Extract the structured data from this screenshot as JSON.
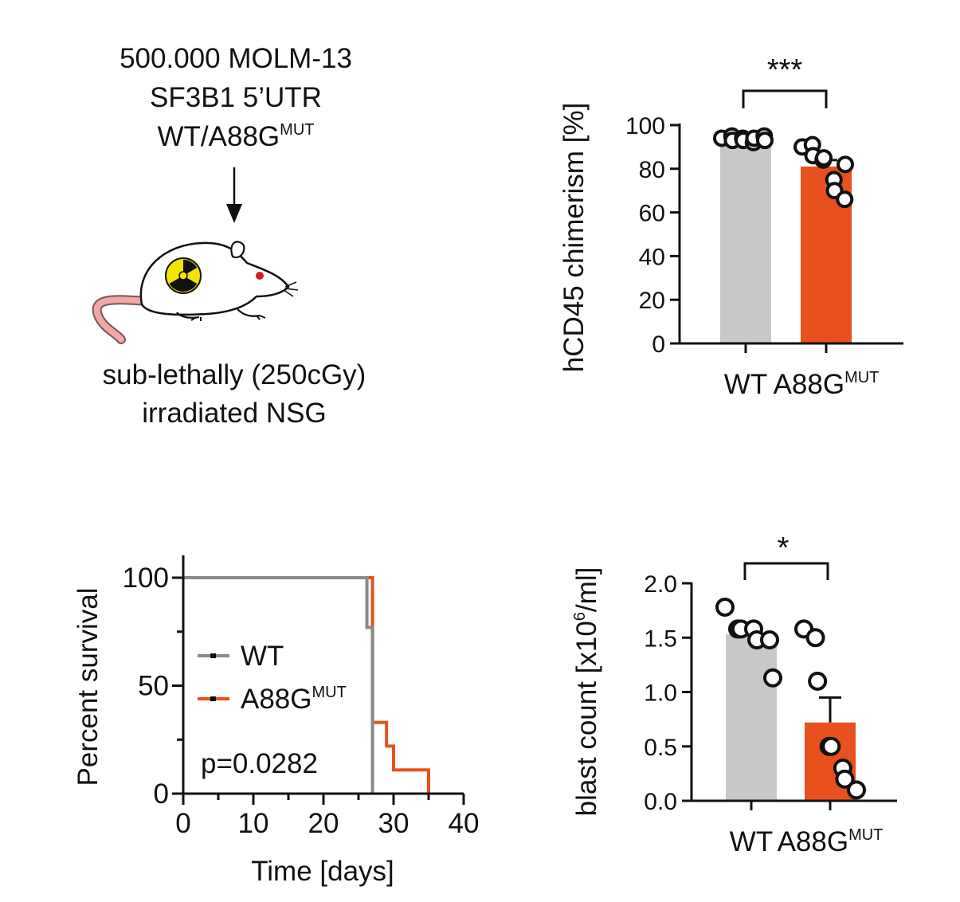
{
  "schematic": {
    "line1": "500.000 MOLM-13",
    "line2": "SF3B1 5’UTR",
    "line3_main": "WT/A88G",
    "line3_sup": "MUT",
    "caption_line1": "sub-lethally (250cGy)",
    "caption_line2": "irradiated NSG"
  },
  "colors": {
    "wt": "#c8c8c8",
    "mut": "#e8501e",
    "wt_line": "#8a8a8a",
    "axis": "#111111",
    "tail": "#f2a7a8",
    "eye": "#d9192a",
    "radiation_yellow": "#f4e400"
  },
  "chart_data": [
    {
      "id": "chimerism",
      "type": "bar",
      "categories": [
        "WT",
        "A88G"
      ],
      "category_sup": [
        "",
        "MUT"
      ],
      "values": [
        93.5,
        81
      ],
      "error": [
        1,
        3
      ],
      "points": [
        [
          94,
          95,
          93,
          94,
          93,
          92,
          94,
          95,
          93
        ],
        [
          90,
          91,
          86,
          84,
          85,
          75,
          70,
          66,
          82
        ]
      ],
      "ylabel": "hCD45 chimerism [%]",
      "ylim": [
        0,
        100
      ],
      "yticks": [
        "0",
        "20",
        "40",
        "60",
        "80",
        "100"
      ],
      "significance": "***"
    },
    {
      "id": "survival",
      "type": "line",
      "xlabel": "Time [days]",
      "ylabel": "Percent survival",
      "xlim": [
        0,
        40
      ],
      "ylim": [
        0,
        100
      ],
      "xticks": [
        "0",
        "10",
        "20",
        "30",
        "40"
      ],
      "yticks": [
        "0",
        "50",
        "100"
      ],
      "series": [
        {
          "name": "WT",
          "name_sup": "",
          "steps": [
            [
              0,
              100
            ],
            [
              26.2,
              100
            ],
            [
              26.2,
              77
            ],
            [
              27,
              77
            ],
            [
              27,
              0
            ]
          ]
        },
        {
          "name": "A88G",
          "name_sup": "MUT",
          "steps": [
            [
              0,
              100
            ],
            [
              27,
              100
            ],
            [
              27,
              33
            ],
            [
              29,
              33
            ],
            [
              29,
              22
            ],
            [
              30,
              22
            ],
            [
              30,
              11
            ],
            [
              35,
              11
            ],
            [
              35,
              0
            ]
          ]
        }
      ],
      "legend_position": "left-center",
      "annotation": "p=0.0282"
    },
    {
      "id": "blast",
      "type": "bar",
      "categories": [
        "WT",
        "A88G"
      ],
      "category_sup": [
        "",
        "MUT"
      ],
      "values": [
        1.53,
        0.72
      ],
      "error": [
        0.05,
        0.23
      ],
      "points": [
        [
          1.78,
          1.58,
          1.58,
          1.58,
          1.48,
          1.48,
          1.13
        ],
        [
          1.58,
          1.5,
          1.1,
          0.5,
          0.5,
          0.3,
          0.2,
          0.1
        ]
      ],
      "ylabel_main": "blast count [x10",
      "ylabel_sup": "6",
      "ylabel_end": "/ml]",
      "ylim": [
        0,
        2.0
      ],
      "yticks": [
        "0.0",
        "0.5",
        "1.0",
        "1.5",
        "2.0"
      ],
      "significance": "*"
    }
  ]
}
